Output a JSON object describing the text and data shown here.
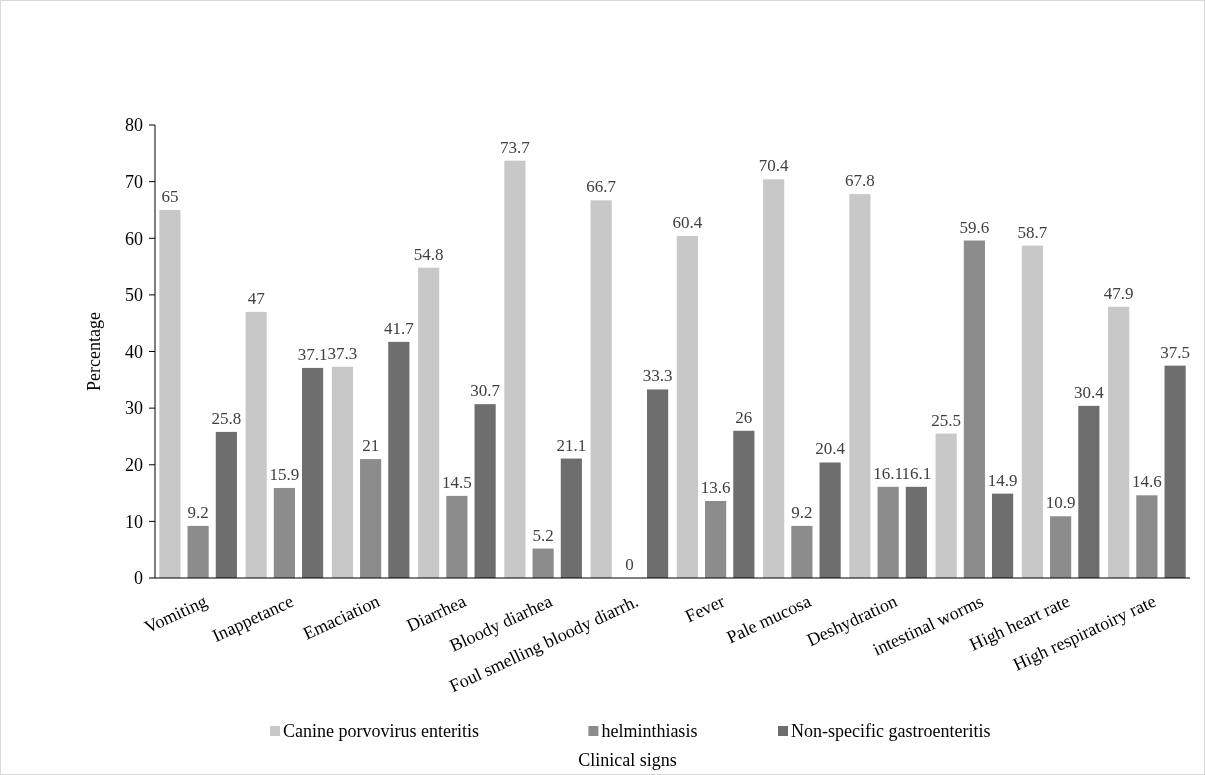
{
  "chart_data": {
    "type": "bar",
    "xlabel": "Clinical signs",
    "ylabel": "Percentage",
    "categories": [
      "Vomiting",
      "Inappetance",
      "Emaciation",
      "Diarrhea",
      "Bloody diarhea",
      "Foul smelling bloody diarrh.",
      "Fever",
      "Pale mucosa",
      "Deshydration",
      "intestinal worms",
      "High heart rate",
      "High respiratoiry rate"
    ],
    "series": [
      {
        "name": "Canine porvovirus enteritis",
        "color": "#c8c8c8",
        "values": [
          65,
          47,
          37.3,
          54.8,
          73.7,
          66.7,
          60.4,
          70.4,
          67.8,
          25.5,
          58.7,
          47.9
        ]
      },
      {
        "name": "helminthiasis",
        "color": "#8c8c8c",
        "values": [
          9.2,
          15.9,
          21,
          14.5,
          5.2,
          0,
          13.6,
          9.2,
          16.1,
          59.6,
          10.9,
          14.6
        ]
      },
      {
        "name": "Non-specific gastroenteritis",
        "color": "#6e6e6e",
        "values": [
          25.8,
          37.1,
          41.7,
          30.7,
          21.1,
          33.3,
          26,
          20.4,
          16.1,
          14.9,
          30.4,
          37.5
        ]
      }
    ],
    "ylim": [
      0,
      80
    ],
    "yticks": [
      0,
      10,
      20,
      30,
      40,
      50,
      60,
      70,
      80
    ],
    "data_labels": true,
    "legend": "bottom",
    "grid": false
  }
}
